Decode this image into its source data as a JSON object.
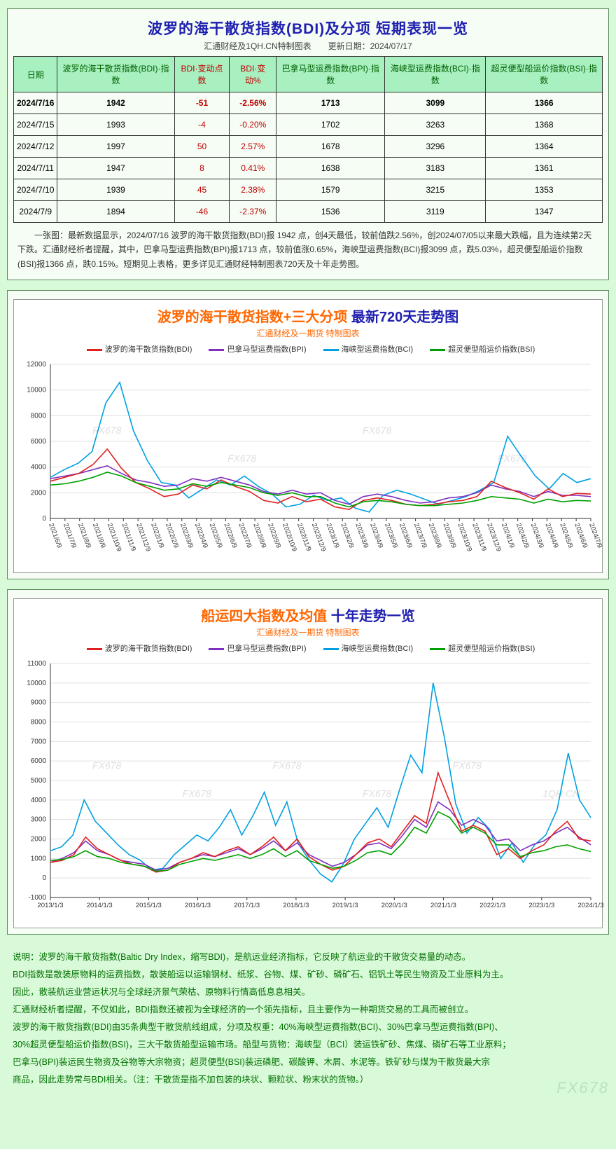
{
  "page": {
    "bg": "#d8fad8",
    "panel_bg": "#f5fdf5",
    "panel_border": "#5a8a5a"
  },
  "table_panel": {
    "title": "波罗的海干散货指数(BDI)及分项 短期表现一览",
    "subtitle": "汇通财经及1QH.CN特制图表　　更新日期：2024/07/17",
    "columns": [
      {
        "label": "日期",
        "red": false
      },
      {
        "label": "波罗的海干散货指数(BDI)·指数",
        "red": false
      },
      {
        "label": "BDI·变动点数",
        "red": true
      },
      {
        "label": "BDI·变动%",
        "red": true
      },
      {
        "label": "巴拿马型运费指数(BPI)·指数",
        "red": false
      },
      {
        "label": "海峡型运费指数(BCI)·指数",
        "red": false
      },
      {
        "label": "超灵便型船运价指数(BSI)·指数",
        "red": false
      }
    ],
    "rows": [
      {
        "bold": true,
        "cells": [
          "2024/7/16",
          "1942",
          "-51",
          "-2.56%",
          "1713",
          "3099",
          "1366"
        ]
      },
      {
        "bold": false,
        "cells": [
          "2024/7/15",
          "1993",
          "-4",
          "-0.20%",
          "1702",
          "3263",
          "1368"
        ]
      },
      {
        "bold": false,
        "cells": [
          "2024/7/12",
          "1997",
          "50",
          "2.57%",
          "1678",
          "3296",
          "1364"
        ]
      },
      {
        "bold": false,
        "cells": [
          "2024/7/11",
          "1947",
          "8",
          "0.41%",
          "1638",
          "3183",
          "1361"
        ]
      },
      {
        "bold": false,
        "cells": [
          "2024/7/10",
          "1939",
          "45",
          "2.38%",
          "1579",
          "3215",
          "1353"
        ]
      },
      {
        "bold": false,
        "cells": [
          "2024/7/9",
          "1894",
          "-46",
          "-2.37%",
          "1536",
          "3119",
          "1347"
        ]
      }
    ],
    "summary": "一张图：最新数据显示，2024/07/16 波罗的海干散货指数(BDI)报 1942 点，创4天最低，较前值跌2.56%，创2024/07/05以来最大跌幅，且为连续第2天下跌。汇通财经析者提醒，其中，巴拿马型运费指数(BPI)报1713 点，较前值涨0.65%，海峡型运费指数(BCI)报3099 点，跌5.03%，超灵便型船运价指数(BSI)报1366 点，跌0.15%。短期见上表格，更多详见汇通财经特制图表720天及十年走势图。"
  },
  "chart720": {
    "title_a": "波罗的海干散货指数+三大分项",
    "title_b": " 最新720天走势图",
    "subtitle": "汇通财经及一期货 特制图表",
    "legend": [
      {
        "label": "波罗的海干散货指数(BDI)",
        "color": "#e02020"
      },
      {
        "label": "巴拿马型运费指数(BPI)",
        "color": "#8030c0"
      },
      {
        "label": "海峡型运费指数(BCI)",
        "color": "#00a0e0"
      },
      {
        "label": "超灵便型船运价指数(BSI)",
        "color": "#00a000"
      }
    ],
    "ylim": [
      0,
      12000
    ],
    "ystep": 2000,
    "grid_color": "#e0e0e0",
    "axis_color": "#333333",
    "xticks": [
      "2021/6/9",
      "2021/7/9",
      "2021/8/9",
      "2021/9/9",
      "2021/10/9",
      "2021/11/9",
      "2021/12/9",
      "2022/1/9",
      "2022/2/9",
      "2022/3/9",
      "2022/4/9",
      "2022/5/9",
      "2022/6/9",
      "2022/7/9",
      "2022/8/9",
      "2022/9/9",
      "2022/10/9",
      "2022/11/9",
      "2022/12/9",
      "2023/1/9",
      "2023/2/9",
      "2023/3/9",
      "2023/4/9",
      "2023/5/9",
      "2023/6/9",
      "2023/7/9",
      "2023/8/9",
      "2023/9/9",
      "2023/10/9",
      "2023/11/9",
      "2023/12/9",
      "2024/1/9",
      "2024/2/9",
      "2024/3/9",
      "2024/4/9",
      "2024/5/9",
      "2024/6/9",
      "2024/7/9"
    ],
    "series": {
      "BDI": [
        2900,
        3200,
        3500,
        4200,
        5400,
        3900,
        2800,
        2300,
        1700,
        1900,
        2600,
        2300,
        3000,
        2500,
        2100,
        1400,
        1200,
        1700,
        1300,
        1500,
        900,
        700,
        1400,
        1600,
        1400,
        1100,
        1000,
        1100,
        1300,
        1400,
        1700,
        2900,
        2400,
        2000,
        1500,
        2300,
        1700,
        1950,
        1900
      ],
      "BPI": [
        3100,
        3300,
        3500,
        3800,
        4100,
        3500,
        3000,
        2800,
        2500,
        2600,
        3100,
        2900,
        3200,
        2900,
        2600,
        2100,
        1900,
        2200,
        1900,
        2000,
        1400,
        1100,
        1700,
        1900,
        1700,
        1400,
        1200,
        1300,
        1600,
        1700,
        2000,
        2600,
        2300,
        2100,
        1700,
        2100,
        1800,
        1800,
        1700
      ],
      "BCI": [
        3200,
        3800,
        4300,
        5200,
        9000,
        10600,
        6800,
        4500,
        2800,
        2600,
        1600,
        2300,
        3000,
        2600,
        3300,
        2500,
        1900,
        900,
        1100,
        1800,
        1400,
        1600,
        800,
        500,
        1800,
        2200,
        1900,
        1500,
        1100,
        1400,
        1700,
        2200,
        2800,
        6400,
        4800,
        3300,
        2300,
        3500,
        2800,
        3100
      ],
      "BSI": [
        2600,
        2700,
        2900,
        3200,
        3600,
        3300,
        2800,
        2500,
        2200,
        2300,
        2700,
        2500,
        2800,
        2600,
        2400,
        2000,
        1800,
        2000,
        1700,
        1700,
        1200,
        900,
        1300,
        1400,
        1300,
        1100,
        1000,
        1000,
        1100,
        1200,
        1400,
        1700,
        1600,
        1500,
        1200,
        1500,
        1300,
        1400,
        1360
      ]
    },
    "watermarks": [
      "FX678",
      "FX678",
      "FX678",
      "FX678"
    ]
  },
  "chart10y": {
    "title_a": "船运四大指数及均值",
    "title_b": " 十年走势一览",
    "subtitle": "汇通财经及一期货 特制图表",
    "legend": [
      {
        "label": "波罗的海干散货指数(BDI)",
        "color": "#e02020"
      },
      {
        "label": "巴拿马型运费指数(BPI)",
        "color": "#8030c0"
      },
      {
        "label": "海峡型运费指数(BCI)",
        "color": "#00a0e0"
      },
      {
        "label": "超灵便型船运价指数(BSI)",
        "color": "#00a000"
      }
    ],
    "ylim": [
      -1000,
      11000
    ],
    "ystep": 1000,
    "grid_color": "#e0e0e0",
    "axis_color": "#333333",
    "xticks": [
      "2013/1/3",
      "2014/1/3",
      "2015/1/3",
      "2016/1/3",
      "2017/1/3",
      "2018/1/3",
      "2019/1/3",
      "2020/1/3",
      "2021/1/3",
      "2022/1/3",
      "2023/1/3",
      "2024/1/3"
    ],
    "series": {
      "BDI": [
        800,
        900,
        1200,
        2100,
        1500,
        1200,
        900,
        700,
        600,
        300,
        400,
        800,
        1000,
        1300,
        1100,
        1400,
        1600,
        1200,
        1600,
        2100,
        1400,
        2000,
        1100,
        700,
        400,
        600,
        1200,
        1800,
        2000,
        1600,
        2400,
        3200,
        2800,
        5400,
        3900,
        2400,
        2700,
        2400,
        1200,
        1500,
        1000,
        1400,
        1700,
        2400,
        2900,
        2000,
        1900
      ],
      "BPI": [
        800,
        1000,
        1300,
        1900,
        1400,
        1200,
        900,
        800,
        700,
        400,
        500,
        800,
        1000,
        1200,
        1100,
        1300,
        1500,
        1200,
        1500,
        1900,
        1400,
        1800,
        1200,
        900,
        600,
        800,
        1200,
        1700,
        1800,
        1500,
        2200,
        3000,
        2600,
        3900,
        3500,
        2700,
        3000,
        2700,
        1900,
        2000,
        1400,
        1700,
        1900,
        2300,
        2600,
        2100,
        1700
      ],
      "BCI": [
        1400,
        1600,
        2200,
        4000,
        2900,
        2300,
        1700,
        1200,
        900,
        400,
        500,
        1200,
        1700,
        2200,
        1900,
        2600,
        3500,
        2200,
        3200,
        4400,
        2700,
        3900,
        1800,
        900,
        200,
        -200,
        700,
        2000,
        2800,
        3600,
        2600,
        4500,
        6300,
        5400,
        10000,
        7200,
        3800,
        2300,
        3100,
        2500,
        1000,
        1800,
        800,
        1700,
        2200,
        3500,
        6400,
        4000,
        3100
      ],
      "BSI": [
        900,
        950,
        1100,
        1400,
        1100,
        1000,
        800,
        700,
        600,
        350,
        400,
        700,
        850,
        1000,
        900,
        1050,
        1200,
        1000,
        1200,
        1500,
        1100,
        1400,
        900,
        700,
        500,
        600,
        900,
        1300,
        1400,
        1200,
        1800,
        2600,
        2300,
        3400,
        3100,
        2300,
        2600,
        2300,
        1700,
        1700,
        1100,
        1300,
        1400,
        1600,
        1700,
        1500,
        1360
      ]
    },
    "watermarks": [
      "FX678",
      "FX678",
      "FX678",
      "FX678",
      "FX678",
      "1QH.CN"
    ]
  },
  "footnotes": [
    "说明：波罗的海干散货指数(Baltic Dry Index，缩写BDI)，是航运业经济指标，它反映了航运业的干散货交易量的动态。",
    "BDI指数是散装原物料的运费指数，散装船运以运输钢材、纸浆、谷物、煤、矿砂、磷矿石、铝钒土等民生物资及工业原料为主。",
    "因此，散装航运业营运状况与全球经济景气荣枯、原物料行情高低息息相关。",
    "汇通财经析者提醒，不仅如此，BDI指数还被视为全球经济的一个领先指标，且主要作为一种期货交易的工具而被创立。",
    "波罗的海干散货指数(BDI)由35条典型干散货航线组成，分项及权重：40%海峡型运费指数(BCI)、30%巴拿马型运费指数(BPI)、",
    "30%超灵便型船运价指数(BSI)，三大干散货船型运输市场。船型与货物：海峡型（BCI）装运铁矿砂、焦煤、磷矿石等工业原料；",
    "巴拿马(BPI)装运民生物资及谷物等大宗物资；超灵便型(BSI)装运磷肥、碳酸钾、木屑、水泥等。铁矿砂与煤为干散货最大宗",
    "商品，因此走势常与BDI相关。（注：干散货是指不加包装的块状、颗粒状、粉末状的货物。）"
  ],
  "corner_mark": "FX678"
}
